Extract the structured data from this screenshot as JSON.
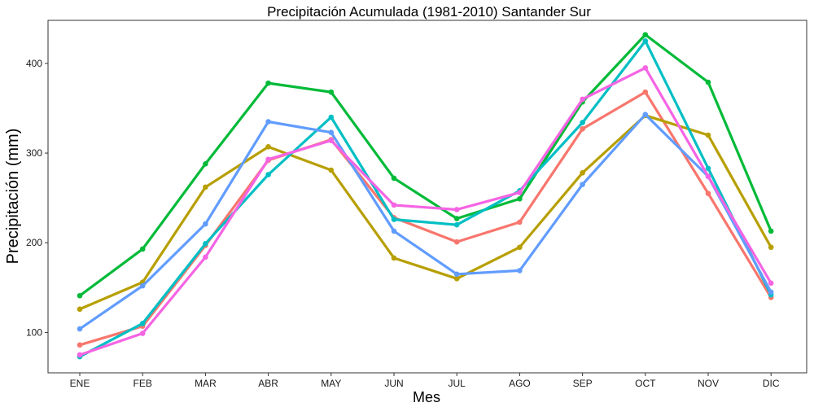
{
  "chart_data": {
    "type": "line",
    "title": "Precipitación Acumulada (1981-2010)  Santander Sur",
    "xlabel": "Mes",
    "ylabel": "Precipitación  (mm)",
    "categories": [
      "ENE",
      "FEB",
      "MAR",
      "ABR",
      "MAY",
      "JUN",
      "JUL",
      "AGO",
      "SEP",
      "OCT",
      "NOV",
      "DIC"
    ],
    "ylim": [
      55,
      448
    ],
    "yticks": [
      100,
      200,
      300,
      400
    ],
    "grid": false,
    "legend": "none",
    "series": [
      {
        "color": "#F8766D",
        "values": [
          86,
          107,
          197,
          292,
          315,
          228,
          201,
          223,
          327,
          368,
          255,
          139
        ]
      },
      {
        "color": "#B79F00",
        "values": [
          126,
          156,
          262,
          307,
          281,
          183,
          160,
          195,
          278,
          342,
          320,
          195
        ]
      },
      {
        "color": "#00BA38",
        "values": [
          141,
          193,
          288,
          378,
          368,
          272,
          227,
          249,
          357,
          432,
          379,
          213
        ]
      },
      {
        "color": "#00BFC4",
        "values": [
          73,
          110,
          199,
          276,
          340,
          226,
          220,
          258,
          334,
          425,
          283,
          142
        ]
      },
      {
        "color": "#619CFF",
        "values": [
          104,
          152,
          221,
          335,
          323,
          213,
          165,
          169,
          265,
          343,
          274,
          145
        ]
      },
      {
        "color": "#F564E3",
        "values": [
          75,
          99,
          184,
          293,
          314,
          242,
          237,
          256,
          360,
          395,
          274,
          155
        ]
      }
    ]
  }
}
